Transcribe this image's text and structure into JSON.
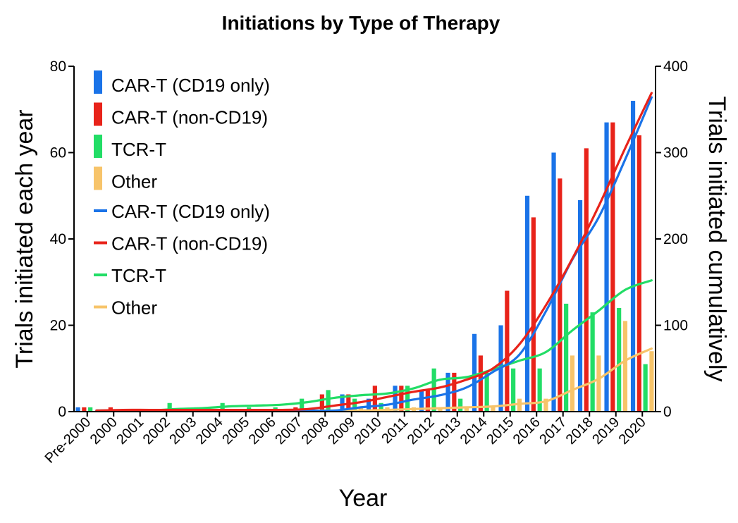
{
  "chart_data": {
    "type": "bar",
    "title": "Initiations by Type of Therapy",
    "xlabel": "Year",
    "ylabel": "Trials initiated each year",
    "y2label": "Trials initiated cumulatively",
    "ylim": [
      0,
      80
    ],
    "y2lim": [
      0,
      400
    ],
    "yticks": [
      "0",
      "20",
      "40",
      "60",
      "80"
    ],
    "y2ticks": [
      "0",
      "100",
      "200",
      "300",
      "400"
    ],
    "categories": [
      "Pre-2000",
      "2000",
      "2001",
      "2002",
      "2003",
      "2004",
      "2005",
      "2006",
      "2007",
      "2008",
      "2009",
      "2010",
      "2011",
      "2012",
      "2013",
      "2014",
      "2015",
      "2016",
      "2017",
      "2018",
      "2019",
      "2020"
    ],
    "legend_position": "top-left",
    "grid": false,
    "bar_series": [
      {
        "name": "CAR-T (CD19 only)",
        "color": "#1a73e8",
        "values": [
          1,
          0,
          0,
          0,
          0,
          0,
          0,
          0,
          0,
          0,
          4,
          3,
          6,
          5,
          9,
          18,
          20,
          50,
          60,
          49,
          67,
          72
        ]
      },
      {
        "name": "CAR-T (non-CD19)",
        "color": "#e8231a",
        "values": [
          1,
          1,
          0,
          0,
          0,
          0,
          0,
          0,
          1,
          4,
          4,
          6,
          6,
          5,
          9,
          13,
          28,
          45,
          54,
          61,
          67,
          64
        ]
      },
      {
        "name": "TCR-T",
        "color": "#22dd66",
        "values": [
          1,
          0,
          0,
          2,
          1,
          2,
          1,
          1,
          3,
          5,
          3,
          2,
          6,
          10,
          3,
          9,
          10,
          10,
          25,
          23,
          24,
          11
        ]
      },
      {
        "name": "Other",
        "color": "#f7c46a",
        "values": [
          0,
          0,
          0,
          0,
          0,
          0,
          0,
          0,
          0,
          0,
          1,
          1,
          1,
          1,
          1,
          1,
          3,
          3,
          13,
          13,
          21,
          14
        ]
      }
    ],
    "line_series": [
      {
        "name": "CAR-T (CD19 only)",
        "color": "#1a73e8",
        "values": [
          1,
          1,
          1,
          1,
          1,
          1,
          1,
          1,
          1,
          1,
          5,
          8,
          14,
          19,
          28,
          46,
          66,
          116,
          176,
          225,
          292,
          364
        ]
      },
      {
        "name": "CAR-T (non-CD19)",
        "color": "#e8231a",
        "values": [
          1,
          2,
          2,
          2,
          2,
          2,
          2,
          2,
          3,
          7,
          11,
          17,
          23,
          28,
          37,
          50,
          78,
          123,
          177,
          238,
          305,
          369
        ]
      },
      {
        "name": "TCR-T",
        "color": "#22dd66",
        "values": [
          1,
          1,
          1,
          3,
          4,
          6,
          7,
          8,
          11,
          16,
          19,
          21,
          27,
          37,
          40,
          49,
          59,
          69,
          94,
          117,
          141,
          152
        ]
      },
      {
        "name": "Other",
        "color": "#f7c46a",
        "values": [
          0,
          0,
          0,
          0,
          0,
          0,
          0,
          0,
          0,
          0,
          1,
          2,
          3,
          4,
          5,
          6,
          9,
          12,
          25,
          38,
          59,
          73
        ]
      }
    ]
  }
}
